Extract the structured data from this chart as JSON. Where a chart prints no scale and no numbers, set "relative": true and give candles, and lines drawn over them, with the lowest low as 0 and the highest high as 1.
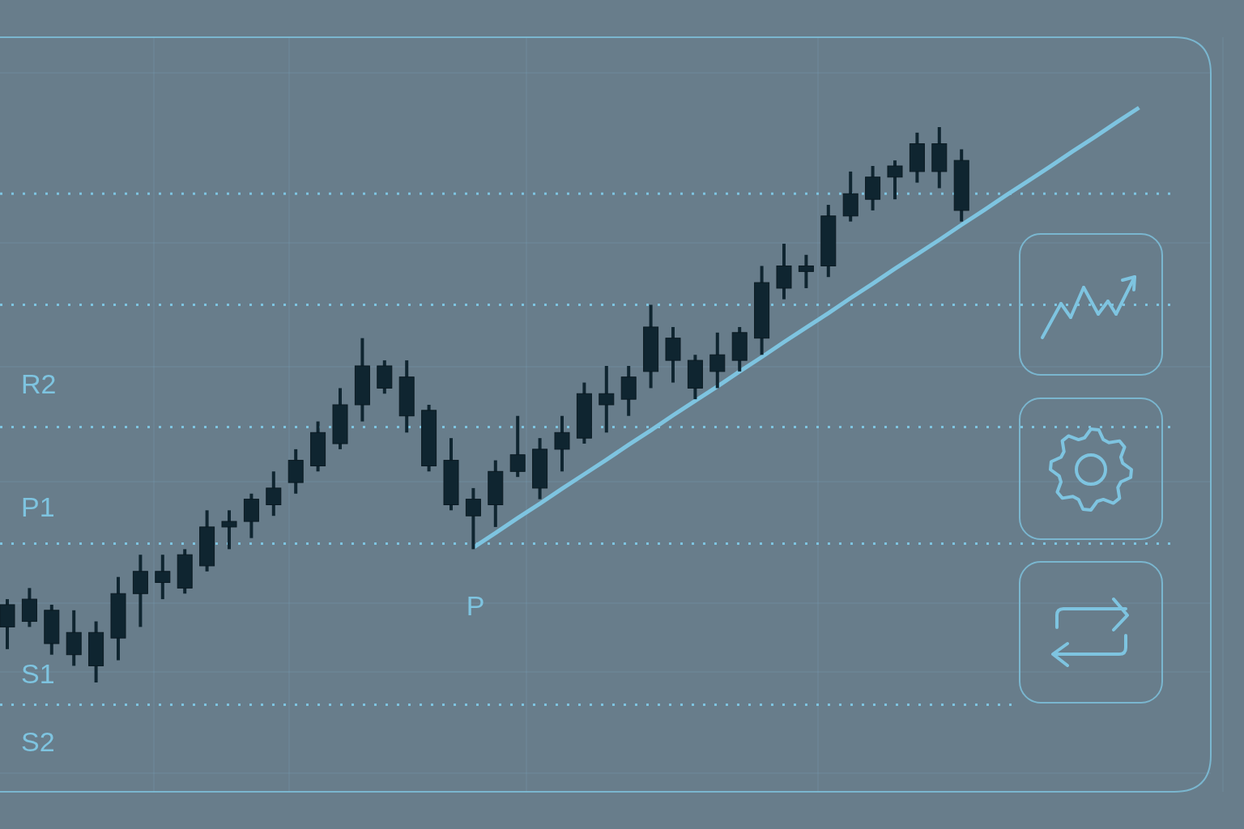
{
  "chart_data": {
    "type": "candlestick",
    "relative": true,
    "grid": true,
    "color": "#0f2530",
    "categories": [
      null,
      null,
      null,
      null,
      null,
      null,
      null,
      null,
      null,
      null,
      null,
      null,
      null,
      null,
      null,
      null,
      null,
      null,
      null,
      null,
      null,
      null,
      null,
      null,
      null,
      null,
      null,
      null,
      null,
      null,
      null,
      null,
      null,
      null,
      null,
      null,
      null,
      null,
      null,
      null,
      null,
      null,
      null,
      null,
      null,
      null,
      null,
      null,
      null,
      null,
      null,
      null
    ],
    "ohlc": [
      [
        0.1,
        0.15,
        0.06,
        0.14
      ],
      [
        0.11,
        0.17,
        0.1,
        0.15
      ],
      [
        0.07,
        0.14,
        0.05,
        0.13
      ],
      [
        0.05,
        0.13,
        0.03,
        0.09
      ],
      [
        0.03,
        0.11,
        0,
        0.09
      ],
      [
        0.08,
        0.19,
        0.04,
        0.16
      ],
      [
        0.16,
        0.23,
        0.1,
        0.2
      ],
      [
        0.18,
        0.23,
        0.15,
        0.2
      ],
      [
        0.17,
        0.24,
        0.16,
        0.23
      ],
      [
        0.21,
        0.31,
        0.2,
        0.28
      ],
      [
        0.28,
        0.31,
        0.24,
        0.29
      ],
      [
        0.29,
        0.34,
        0.26,
        0.33
      ],
      [
        0.32,
        0.38,
        0.3,
        0.35
      ],
      [
        0.36,
        0.42,
        0.34,
        0.4
      ],
      [
        0.39,
        0.47,
        0.38,
        0.45
      ],
      [
        0.43,
        0.53,
        0.42,
        0.5
      ],
      [
        0.5,
        0.62,
        0.47,
        0.57
      ],
      [
        0.53,
        0.58,
        0.52,
        0.57
      ],
      [
        0.48,
        0.58,
        0.45,
        0.55
      ],
      [
        0.39,
        0.5,
        0.38,
        0.49
      ],
      [
        0.32,
        0.44,
        0.31,
        0.4
      ],
      [
        0.3,
        0.35,
        0.24,
        0.33
      ],
      [
        0.32,
        0.4,
        0.28,
        0.38
      ],
      [
        0.38,
        0.48,
        0.37,
        0.41
      ],
      [
        0.35,
        0.44,
        0.33,
        0.42
      ],
      [
        0.42,
        0.48,
        0.38,
        0.45
      ],
      [
        0.44,
        0.54,
        0.43,
        0.52
      ],
      [
        0.5,
        0.57,
        0.45,
        0.52
      ],
      [
        0.51,
        0.57,
        0.48,
        0.55
      ],
      [
        0.56,
        0.68,
        0.53,
        0.64
      ],
      [
        0.58,
        0.64,
        0.54,
        0.62
      ],
      [
        0.53,
        0.59,
        0.51,
        0.58
      ],
      [
        0.56,
        0.63,
        0.53,
        0.59
      ],
      [
        0.58,
        0.64,
        0.56,
        0.63
      ],
      [
        0.62,
        0.75,
        0.59,
        0.72
      ],
      [
        0.71,
        0.79,
        0.69,
        0.75
      ],
      [
        0.74,
        0.77,
        0.71,
        0.75
      ],
      [
        0.75,
        0.86,
        0.73,
        0.84
      ],
      [
        0.84,
        0.92,
        0.83,
        0.88
      ],
      [
        0.87,
        0.93,
        0.85,
        0.91
      ],
      [
        0.91,
        0.94,
        0.87,
        0.93
      ],
      [
        0.92,
        0.99,
        0.9,
        0.97
      ],
      [
        0.92,
        1,
        0.89,
        0.97
      ],
      [
        0.85,
        0.96,
        0.83,
        0.94
      ],
      null,
      null,
      null,
      null,
      null,
      null,
      null,
      null
    ],
    "series": [
      {
        "type": "line",
        "color": "#7ec4e0",
        "values": [
          null,
          null,
          null,
          null,
          null,
          null,
          null,
          null,
          null,
          null,
          null,
          null,
          null,
          null,
          null,
          null,
          null,
          null,
          null,
          null,
          null,
          0.243,
          0.269,
          0.296,
          0.322,
          0.349,
          0.375,
          0.401,
          0.428,
          0.454,
          0.481,
          0.507,
          0.533,
          0.56,
          0.586,
          0.613,
          0.639,
          0.665,
          0.692,
          0.718,
          0.745,
          0.771,
          0.797,
          0.824,
          0.85,
          0.877,
          0.903,
          0.929,
          0.956,
          0.982,
          1.009,
          1.035
        ]
      }
    ],
    "ref_lines": [
      {
        "axis": "y",
        "value": 0.88,
        "color": "#7ec4e0",
        "line_style": "dotted"
      },
      {
        "axis": "y",
        "value": 0.68,
        "color": "#7ec4e0",
        "line_style": "dotted"
      },
      {
        "axis": "y",
        "value": 0.46,
        "color": "#7ec4e0",
        "line_style": "dotted"
      },
      {
        "axis": "y",
        "value": 0.25,
        "color": "#7ec4e0",
        "line_style": "dotted"
      },
      {
        "axis": "y",
        "value": -0.04,
        "color": "#7ec4e0",
        "line_style": "dotted"
      }
    ],
    "annotations": [
      "R2",
      "P1",
      "P",
      "S1",
      "S2"
    ]
  }
}
